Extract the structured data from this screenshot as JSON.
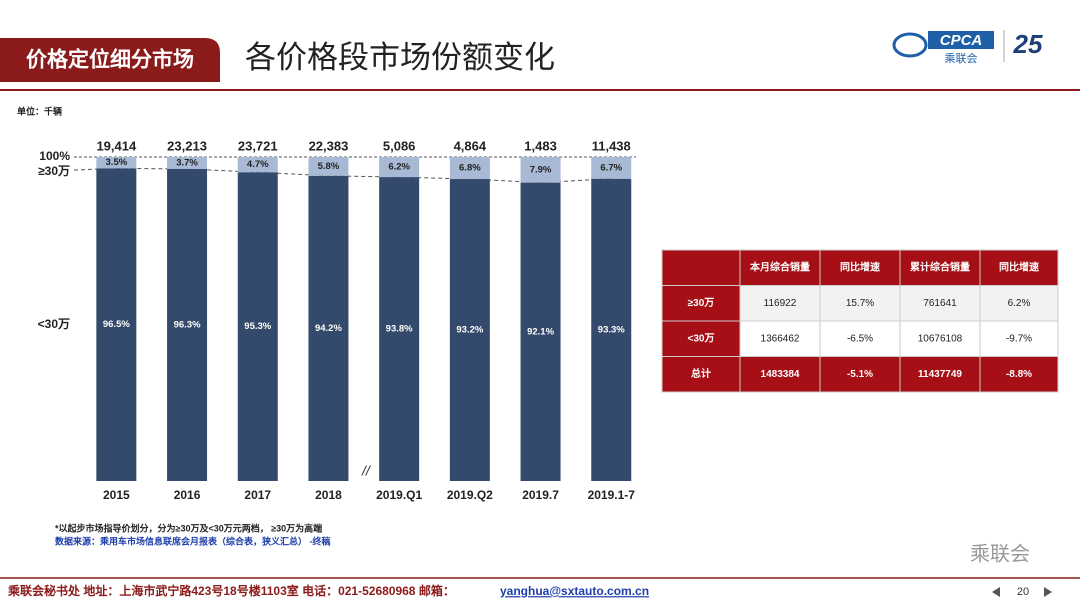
{
  "header": {
    "section": "价格定位细分市场",
    "title": "各价格段市场份额变化",
    "logo": "CPCA",
    "logo_sub": "乘联会"
  },
  "chart_data": {
    "type": "stacked_bar",
    "unit": "单位：千辆",
    "categories": [
      "2015",
      "2016",
      "2017",
      "2018",
      "2019.Q1",
      "2019.Q2",
      "2019.7",
      "2019.1-7"
    ],
    "series": [
      {
        "name": "<30万",
        "color": "#344a6c",
        "values": [
          96.5,
          96.3,
          95.3,
          94.2,
          93.8,
          93.2,
          92.1,
          93.3
        ],
        "value_labels": [
          "96.5%",
          "96.3%",
          "95.3%",
          "94.2%",
          "93.8%",
          "93.2%",
          "92.1%",
          "93.3%"
        ]
      },
      {
        "name": "≥30万",
        "color": "#a7b9d4",
        "values": [
          3.5,
          3.7,
          4.7,
          5.8,
          6.2,
          6.8,
          7.9,
          6.7
        ],
        "value_labels": [
          "3.5%",
          "3.7%",
          "4.7%",
          "5.8%",
          "6.2%",
          "6.8%",
          "7.9%",
          "6.7%"
        ]
      }
    ],
    "totals": {
      "values": [
        19414,
        23213,
        23721,
        22383,
        5086,
        4864,
        1483,
        11438
      ],
      "value_labels": [
        "19,414",
        "23,213",
        "23,721",
        "22,383",
        "5,086",
        "4,864",
        "1,483",
        "11,438"
      ]
    },
    "ylim": [
      0,
      100
    ],
    "yticks": [
      {
        "value": 100,
        "label": "100%"
      }
    ],
    "notes": [
      "*以起步市场指导价划分，分为≥30万及<30万元两档，  ≥30万为高端",
      "数据来源：乘用车市场信息联席会月报表（综合表，狭义汇总）   -终稿"
    ]
  },
  "table": {
    "columns": [
      "本月综合销量",
      "同比增速",
      "累计综合销量",
      "同比增速"
    ],
    "rows": [
      [
        "≥30万",
        "116922",
        "15.7%",
        "761641",
        "6.2%"
      ],
      [
        "<30万",
        "1366462",
        "-6.5%",
        "10676108",
        "-9.7%"
      ],
      [
        "总计",
        "1483384",
        "-5.1%",
        "11437749",
        "-8.8%"
      ]
    ]
  },
  "footer": {
    "address": "乘联会秘书处   地址：上海市武宁路423号18号楼1103室  电话：021-52680968   邮箱：",
    "email": "yanghua@sxtauto.com.cn",
    "page": "20",
    "watermark": "乘联会"
  }
}
